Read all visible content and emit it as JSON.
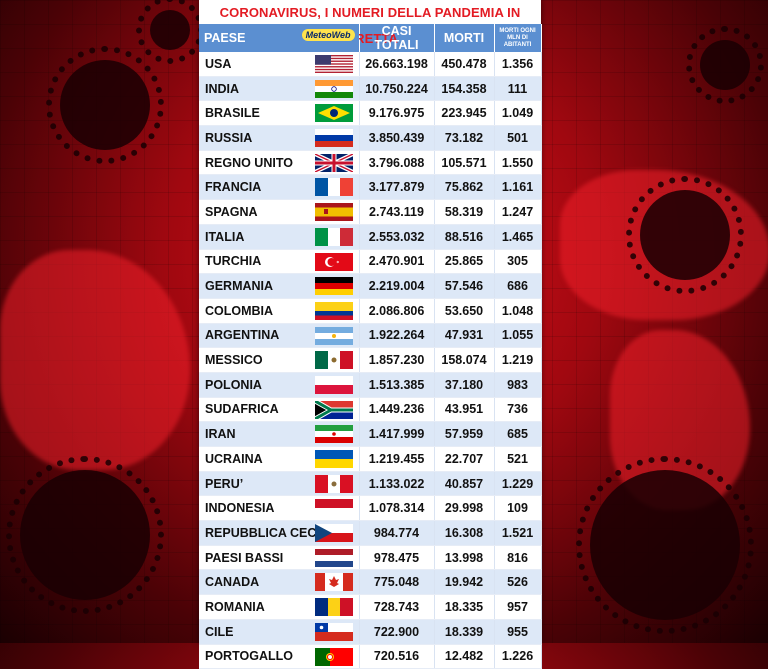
{
  "title": "CORONAVIRUS, I NUMERI DELLA PANDEMIA IN DIRETTA",
  "logo": "MeteoWeb",
  "headers": {
    "country": "PAESE",
    "cases": "CASI TOTALI",
    "deaths": "MORTI",
    "per_million": "MORTI OGNI MLN DI ABITANTI"
  },
  "rows": [
    {
      "country": "USA",
      "cases": "26.663.198",
      "deaths": "450.478",
      "pm": "1.356",
      "flag": "us-flag"
    },
    {
      "country": "INDIA",
      "cases": "10.750.224",
      "deaths": "154.358",
      "pm": "111",
      "flag": "india-flag"
    },
    {
      "country": "BRASILE",
      "cases": "9.176.975",
      "deaths": "223.945",
      "pm": "1.049",
      "flag": "brazil-flag"
    },
    {
      "country": "RUSSIA",
      "cases": "3.850.439",
      "deaths": "73.182",
      "pm": "501",
      "flag": "russia-flag"
    },
    {
      "country": "REGNO UNITO",
      "cases": "3.796.088",
      "deaths": "105.571",
      "pm": "1.550",
      "flag": "uk-flag"
    },
    {
      "country": "FRANCIA",
      "cases": "3.177.879",
      "deaths": "75.862",
      "pm": "1.161",
      "flag": "france-flag"
    },
    {
      "country": "SPAGNA",
      "cases": "2.743.119",
      "deaths": "58.319",
      "pm": "1.247",
      "flag": "spain-flag"
    },
    {
      "country": "ITALIA",
      "cases": "2.553.032",
      "deaths": "88.516",
      "pm": "1.465",
      "flag": "italy-flag"
    },
    {
      "country": "TURCHIA",
      "cases": "2.470.901",
      "deaths": "25.865",
      "pm": "305",
      "flag": "turkey-flag"
    },
    {
      "country": "GERMANIA",
      "cases": "2.219.004",
      "deaths": "57.546",
      "pm": "686",
      "flag": "germany-flag"
    },
    {
      "country": "COLOMBIA",
      "cases": "2.086.806",
      "deaths": "53.650",
      "pm": "1.048",
      "flag": "colombia-flag"
    },
    {
      "country": "ARGENTINA",
      "cases": "1.922.264",
      "deaths": "47.931",
      "pm": "1.055",
      "flag": "argentina-flag"
    },
    {
      "country": "MESSICO",
      "cases": "1.857.230",
      "deaths": "158.074",
      "pm": "1.219",
      "flag": "mexico-flag"
    },
    {
      "country": "POLONIA",
      "cases": "1.513.385",
      "deaths": "37.180",
      "pm": "983",
      "flag": "poland-flag"
    },
    {
      "country": "SUDAFRICA",
      "cases": "1.449.236",
      "deaths": "43.951",
      "pm": "736",
      "flag": "south-africa-flag"
    },
    {
      "country": "IRAN",
      "cases": "1.417.999",
      "deaths": "57.959",
      "pm": "685",
      "flag": "iran-flag"
    },
    {
      "country": "UCRAINA",
      "cases": "1.219.455",
      "deaths": "22.707",
      "pm": "521",
      "flag": "ukraine-flag"
    },
    {
      "country": "PERU’",
      "cases": "1.133.022",
      "deaths": "40.857",
      "pm": "1.229",
      "flag": "peru-flag"
    },
    {
      "country": "INDONESIA",
      "cases": "1.078.314",
      "deaths": "29.998",
      "pm": "109",
      "flag": "indonesia-flag"
    },
    {
      "country": "REPUBBLICA CECA",
      "cases": "984.774",
      "deaths": "16.308",
      "pm": "1.521",
      "flag": "czech-flag"
    },
    {
      "country": "PAESI BASSI",
      "cases": "978.475",
      "deaths": "13.998",
      "pm": "816",
      "flag": "netherlands-flag"
    },
    {
      "country": "CANADA",
      "cases": "775.048",
      "deaths": "19.942",
      "pm": "526",
      "flag": "canada-flag"
    },
    {
      "country": "ROMANIA",
      "cases": "728.743",
      "deaths": "18.335",
      "pm": "957",
      "flag": "romania-flag"
    },
    {
      "country": "CILE",
      "cases": "722.900",
      "deaths": "18.339",
      "pm": "955",
      "flag": "chile-flag"
    },
    {
      "country": "PORTOGALLO",
      "cases": "720.516",
      "deaths": "12.482",
      "pm": "1.226",
      "flag": "portugal-flag"
    }
  ],
  "colors": {
    "title": "#e31b23",
    "header": "#5b8fd1",
    "stripe": "#dde8f7"
  }
}
